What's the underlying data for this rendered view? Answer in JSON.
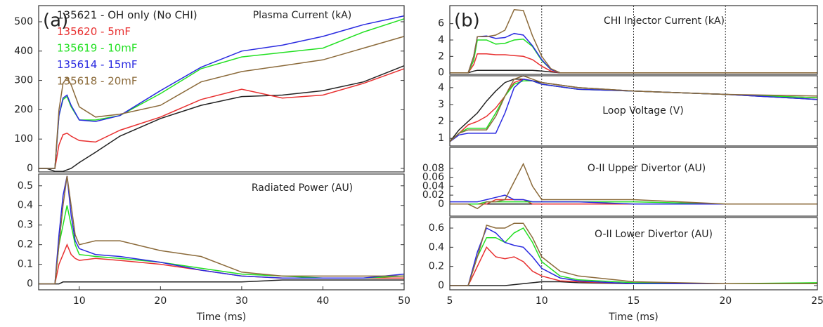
{
  "chart_data": [
    {
      "type": "line",
      "panel_label": "(a)",
      "title": "Plasma Current (kA)",
      "legend": true,
      "x": [
        5,
        6,
        7,
        7.5,
        8,
        8.5,
        9,
        10,
        12,
        15,
        20,
        25,
        30,
        35,
        40,
        45,
        50
      ],
      "xlim": [
        5,
        50
      ],
      "ylim": [
        -12,
        555
      ],
      "yticks": [
        0,
        100,
        200,
        300,
        400,
        500
      ],
      "series": [
        {
          "name": "135621 - OH only (No CHI)",
          "color": "#222222",
          "values": [
            0,
            0,
            -10,
            -10,
            -10,
            -5,
            0,
            20,
            55,
            110,
            170,
            215,
            245,
            250,
            265,
            295,
            350
          ]
        },
        {
          "name": "135620 - 5mF",
          "color": "#e83030",
          "values": [
            0,
            0,
            0,
            80,
            115,
            120,
            110,
            95,
            90,
            130,
            175,
            235,
            270,
            240,
            250,
            290,
            340
          ]
        },
        {
          "name": "135619 - 10mF",
          "color": "#22e022",
          "values": [
            0,
            0,
            0,
            180,
            235,
            245,
            210,
            165,
            165,
            180,
            255,
            340,
            380,
            395,
            410,
            465,
            510
          ]
        },
        {
          "name": "135614 - 15mF",
          "color": "#2a2ae0",
          "values": [
            0,
            0,
            0,
            180,
            240,
            250,
            215,
            165,
            160,
            180,
            265,
            345,
            400,
            420,
            450,
            490,
            520
          ]
        },
        {
          "name": "135618 - 20mF",
          "color": "#8b6a3a",
          "values": [
            0,
            0,
            0,
            200,
            290,
            310,
            285,
            210,
            175,
            185,
            215,
            295,
            330,
            350,
            370,
            410,
            450
          ]
        }
      ]
    },
    {
      "type": "line",
      "title": "Radiated Power (AU)",
      "xlabel": "Time (ms)",
      "x": [
        5,
        7,
        7.5,
        8,
        8.5,
        9,
        9.5,
        10,
        12,
        15,
        20,
        25,
        30,
        35,
        40,
        45,
        50
      ],
      "xlim": [
        5,
        50
      ],
      "ylim": [
        -0.03,
        0.56
      ],
      "xticks": [
        10,
        20,
        30,
        40,
        50
      ],
      "yticks": [
        0,
        0.1,
        0.2,
        0.3,
        0.4,
        0.5
      ],
      "series": [
        {
          "color": "#222222",
          "values": [
            0,
            0,
            0,
            0.01,
            0.01,
            0.01,
            0.01,
            0.01,
            0.01,
            0.01,
            0.01,
            0.01,
            0.01,
            0.02,
            0.02,
            0.02,
            0.02
          ]
        },
        {
          "color": "#e83030",
          "values": [
            0,
            0,
            0.1,
            0.15,
            0.2,
            0.15,
            0.13,
            0.12,
            0.13,
            0.12,
            0.1,
            0.07,
            0.04,
            0.03,
            0.03,
            0.03,
            0.03
          ]
        },
        {
          "color": "#22e022",
          "values": [
            0,
            0,
            0.2,
            0.3,
            0.4,
            0.3,
            0.2,
            0.15,
            0.14,
            0.13,
            0.11,
            0.08,
            0.05,
            0.04,
            0.03,
            0.03,
            0.04
          ]
        },
        {
          "color": "#2a2ae0",
          "values": [
            0,
            0,
            0.25,
            0.45,
            0.55,
            0.35,
            0.22,
            0.18,
            0.15,
            0.14,
            0.11,
            0.07,
            0.04,
            0.03,
            0.03,
            0.03,
            0.05
          ]
        },
        {
          "color": "#8b6a3a",
          "values": [
            0,
            0,
            0.2,
            0.4,
            0.55,
            0.4,
            0.25,
            0.2,
            0.22,
            0.22,
            0.17,
            0.14,
            0.06,
            0.04,
            0.04,
            0.04,
            0.04
          ]
        }
      ]
    },
    {
      "type": "line",
      "panel_label": "(b)",
      "title": "CHI Injector Current (kA)",
      "x": [
        5,
        6,
        6.3,
        6.5,
        7,
        7.5,
        8,
        8.5,
        9,
        9.5,
        10,
        10.5,
        11,
        12,
        15,
        20,
        25
      ],
      "xlim": [
        5,
        25
      ],
      "ylim": [
        -0.2,
        8.2
      ],
      "yticks": [
        0,
        2,
        4,
        6
      ],
      "vlines": [
        10,
        15,
        20
      ],
      "series": [
        {
          "color": "#222222",
          "values": [
            0,
            0,
            0.2,
            0.3,
            0.3,
            0.3,
            0.3,
            0.3,
            0.3,
            0.3,
            0.2,
            0.1,
            0,
            0,
            0,
            0,
            0
          ]
        },
        {
          "color": "#e83030",
          "values": [
            0,
            0,
            1,
            2.3,
            2.3,
            2.2,
            2.2,
            2.1,
            2.0,
            1.6,
            0.8,
            0.2,
            0,
            0,
            0,
            0,
            0
          ]
        },
        {
          "color": "#22e022",
          "values": [
            0,
            0,
            1.5,
            4,
            4,
            3.5,
            3.6,
            4,
            4.1,
            3.2,
            1.5,
            0.4,
            0,
            0,
            0,
            0,
            0
          ]
        },
        {
          "color": "#2a2ae0",
          "values": [
            0,
            0,
            2,
            4.4,
            4.5,
            4.2,
            4.3,
            4.8,
            4.6,
            3.3,
            1.6,
            0.4,
            0,
            0,
            0,
            0,
            0
          ]
        },
        {
          "color": "#8b6a3a",
          "values": [
            0,
            0,
            2,
            4.4,
            4.4,
            4.6,
            5.2,
            7.7,
            7.6,
            4.5,
            2.0,
            0.5,
            0,
            0,
            0,
            0,
            0
          ]
        }
      ]
    },
    {
      "type": "line",
      "title": "Loop Voltage (V)",
      "x": [
        5,
        5.5,
        6,
        6.5,
        7,
        7.5,
        8,
        8.5,
        9,
        9.5,
        10,
        12,
        15,
        20,
        25
      ],
      "xlim": [
        5,
        25
      ],
      "ylim": [
        0.55,
        4.7
      ],
      "yticks": [
        1,
        2,
        3,
        4
      ],
      "vlines": [
        10,
        15,
        20
      ],
      "series": [
        {
          "color": "#222222",
          "values": [
            0.8,
            1.5,
            2,
            2.5,
            3.2,
            3.8,
            4.3,
            4.5,
            4.5,
            4.4,
            4.3,
            4.0,
            3.8,
            3.6,
            3.3
          ]
        },
        {
          "color": "#e83030",
          "values": [
            0.8,
            1.3,
            1.8,
            2,
            2.3,
            2.8,
            3.5,
            4.3,
            4.5,
            4.4,
            4.2,
            3.9,
            3.8,
            3.6,
            3.4
          ]
        },
        {
          "color": "#22e022",
          "values": [
            0.8,
            1.3,
            1.6,
            1.6,
            1.6,
            2.5,
            3.5,
            4.2,
            4.4,
            4.4,
            4.2,
            3.9,
            3.8,
            3.6,
            3.4
          ]
        },
        {
          "color": "#2a2ae0",
          "values": [
            0.8,
            1.2,
            1.3,
            1.3,
            1.3,
            1.3,
            2.5,
            4.0,
            4.5,
            4.4,
            4.2,
            3.9,
            3.8,
            3.6,
            3.3
          ]
        },
        {
          "color": "#8b6a3a",
          "values": [
            0.8,
            1.3,
            1.5,
            1.5,
            1.5,
            2.3,
            3.5,
            4.5,
            4.7,
            4.5,
            4.3,
            4.0,
            3.8,
            3.6,
            3.5
          ]
        }
      ]
    },
    {
      "type": "line",
      "title": "O-II Upper Divertor (AU)",
      "x": [
        5,
        6,
        6.5,
        7,
        7.5,
        8,
        8.5,
        9,
        9.5,
        10,
        12,
        15,
        20,
        25
      ],
      "xlim": [
        5,
        25
      ],
      "ylim": [
        -0.027,
        0.127
      ],
      "yticks": [
        0,
        0.02,
        0.04,
        0.06,
        0.08
      ],
      "vlines": [
        10,
        15,
        20
      ],
      "series": [
        {
          "color": "#222222",
          "values": [
            0,
            0,
            0,
            0,
            0,
            0,
            0,
            0,
            0,
            0,
            0,
            0,
            0,
            0
          ]
        },
        {
          "color": "#e83030",
          "values": [
            0,
            0,
            0,
            0,
            0.01,
            0.01,
            0.01,
            0.01,
            0,
            0,
            0,
            0,
            0,
            0
          ]
        },
        {
          "color": "#22e022",
          "values": [
            0,
            0,
            0,
            0.005,
            0.005,
            0.005,
            0.005,
            0.005,
            0.005,
            0.005,
            0.005,
            0.005,
            0,
            0
          ]
        },
        {
          "color": "#2a2ae0",
          "values": [
            0.005,
            0.005,
            0.005,
            0.01,
            0.015,
            0.02,
            0.01,
            0.01,
            0.005,
            0.005,
            0.005,
            0,
            0,
            0
          ]
        },
        {
          "color": "#8b6a3a",
          "values": [
            0,
            0,
            -0.01,
            0.005,
            0.005,
            0.01,
            0.05,
            0.09,
            0.04,
            0.01,
            0.01,
            0.01,
            0,
            0
          ]
        }
      ]
    },
    {
      "type": "line",
      "title": "O-II Lower Divertor (AU)",
      "xlabel": "Time (ms)",
      "x": [
        5,
        6,
        6.5,
        7,
        7.5,
        8,
        8.5,
        9,
        9.5,
        10,
        11,
        12,
        15,
        20,
        25
      ],
      "xlim": [
        5,
        25
      ],
      "ylim": [
        -0.044,
        0.71
      ],
      "xticks": [
        5,
        10,
        15,
        20,
        25
      ],
      "yticks": [
        0,
        0.2,
        0.4,
        0.6
      ],
      "vlines": [
        10,
        15,
        20
      ],
      "series": [
        {
          "color": "#222222",
          "values": [
            0,
            0,
            0,
            0,
            0,
            0,
            0.01,
            0.02,
            0.03,
            0.04,
            0.04,
            0.03,
            0.02,
            0.02,
            0.02
          ]
        },
        {
          "color": "#e83030",
          "values": [
            0,
            0,
            0.2,
            0.4,
            0.3,
            0.28,
            0.3,
            0.25,
            0.15,
            0.1,
            0.05,
            0.04,
            0.02,
            0.02,
            0.02
          ]
        },
        {
          "color": "#22e022",
          "values": [
            0,
            0,
            0.3,
            0.5,
            0.5,
            0.45,
            0.55,
            0.6,
            0.45,
            0.25,
            0.1,
            0.06,
            0.03,
            0.02,
            0.03
          ]
        },
        {
          "color": "#2a2ae0",
          "values": [
            0,
            0,
            0.35,
            0.6,
            0.55,
            0.45,
            0.42,
            0.4,
            0.3,
            0.18,
            0.08,
            0.05,
            0.02,
            0.02,
            0.02
          ]
        },
        {
          "color": "#8b6a3a",
          "values": [
            0,
            0,
            0.3,
            0.63,
            0.6,
            0.6,
            0.65,
            0.65,
            0.5,
            0.3,
            0.15,
            0.1,
            0.04,
            0.02,
            0.02
          ]
        }
      ]
    }
  ]
}
